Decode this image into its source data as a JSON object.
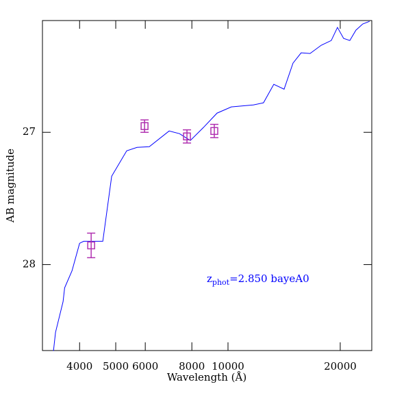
{
  "chart_data": {
    "type": "line",
    "xlabel": "Wavelength (Å)",
    "ylabel": "AB magnitude",
    "xscale": "log",
    "xlim": [
      3180,
      24300
    ],
    "ylim": [
      28.65,
      26.155
    ],
    "xticks": [
      4000,
      5000,
      6000,
      8000,
      10000,
      20000
    ],
    "yticks": [
      27,
      28
    ],
    "annotation": {
      "main": "z",
      "sub": "phot",
      "rest": "=2.850 bayeA0",
      "color": "#0000ff"
    },
    "line": {
      "color": "#0000ff",
      "x": [
        3404,
        3447,
        3612,
        3647,
        3817,
        4000,
        4102,
        4616,
        4876,
        5350,
        5702,
        6151,
        6953,
        7410,
        7925,
        8590,
        9346,
        10210,
        11700,
        12450,
        13270,
        14140,
        14940,
        15710,
        16600,
        17780,
        18920,
        19660,
        20420,
        21220,
        22030,
        22980,
        23970
      ],
      "values": [
        28.653,
        28.513,
        28.28,
        28.176,
        28.047,
        27.839,
        27.824,
        27.824,
        27.332,
        27.14,
        27.114,
        27.109,
        26.99,
        27.01,
        27.062,
        26.964,
        26.855,
        26.808,
        26.793,
        26.777,
        26.637,
        26.674,
        26.477,
        26.399,
        26.404,
        26.342,
        26.306,
        26.207,
        26.29,
        26.306,
        26.228,
        26.181,
        26.161
      ]
    },
    "points": {
      "color": "#b030b0",
      "x": [
        4296,
        5974,
        7762,
        9190
      ],
      "values": [
        27.855,
        26.953,
        27.031,
        26.99
      ],
      "errors": [
        0.093,
        0.047,
        0.05,
        0.05
      ]
    }
  }
}
